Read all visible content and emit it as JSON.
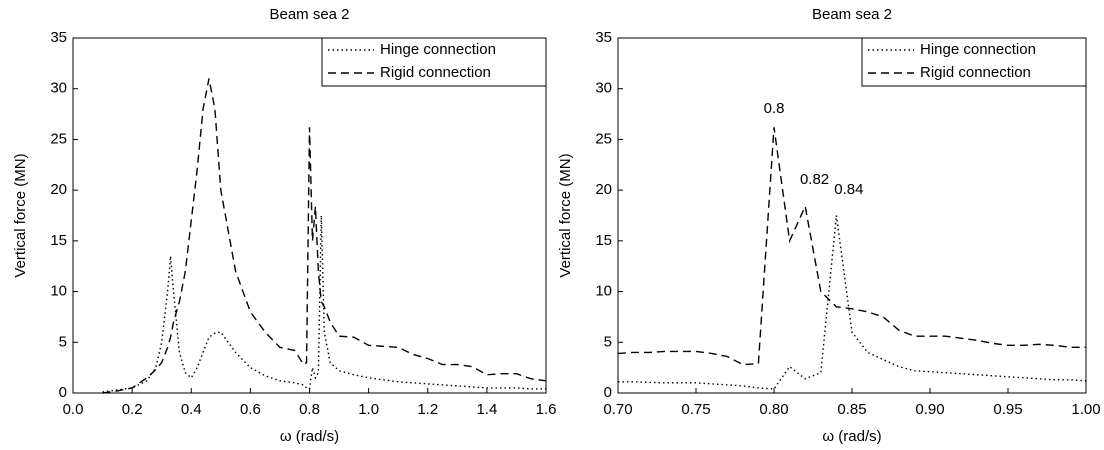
{
  "chart_data": [
    {
      "type": "line",
      "title": "Beam sea 2",
      "xlabel": "ω (rad/s)",
      "ylabel": "Vertical force (MN)",
      "xlim": [
        0,
        1.6
      ],
      "ylim": [
        0,
        35
      ],
      "xticks": [
        {
          "value": 0,
          "label": "0.0"
        },
        0.2,
        0.4,
        0.6,
        0.8,
        {
          "value": 1,
          "label": "1.0"
        },
        1.2,
        1.4,
        1.6
      ],
      "yticks": [
        0,
        5,
        10,
        15,
        20,
        25,
        30,
        35
      ],
      "legend": "upper right",
      "x": [
        0.1,
        0.15,
        0.2,
        0.25,
        0.28,
        0.3,
        0.32,
        0.33,
        0.34,
        0.36,
        0.38,
        0.4,
        0.42,
        0.44,
        0.46,
        0.48,
        0.5,
        0.55,
        0.6,
        0.65,
        0.7,
        0.75,
        0.78,
        0.79,
        0.8,
        0.81,
        0.82,
        0.83,
        0.84,
        0.85,
        0.87,
        0.9,
        0.95,
        1.0,
        1.05,
        1.1,
        1.15,
        1.2,
        1.25,
        1.3,
        1.35,
        1.4,
        1.45,
        1.5,
        1.55,
        1.6
      ],
      "series": [
        {
          "name": "Hinge connection",
          "color": "#000000",
          "dash": "dotted",
          "values": [
            0.1,
            0.3,
            0.5,
            1.2,
            2.5,
            5,
            10,
            13.5,
            10,
            4,
            2,
            1.5,
            2.5,
            4,
            5.5,
            5.9,
            6,
            4,
            2.5,
            1.7,
            1.2,
            1,
            0.8,
            0.5,
            0.4,
            2.5,
            1.5,
            2,
            17.5,
            6,
            3,
            2.2,
            1.8,
            1.5,
            1.3,
            1.1,
            1,
            0.9,
            0.8,
            0.7,
            0.6,
            0.5,
            0.5,
            0.5,
            0.4,
            0.4
          ]
        },
        {
          "name": "Rigid connection",
          "color": "#000000",
          "dash": "dashed",
          "values": [
            0,
            0.2,
            0.5,
            1.5,
            2.3,
            3,
            4.5,
            5.5,
            7,
            9,
            12,
            17,
            22,
            28,
            31,
            28,
            20,
            12,
            8,
            6,
            4.5,
            4.2,
            2.8,
            3,
            26.2,
            15,
            18.4,
            12,
            9,
            8.5,
            7,
            5.6,
            5.5,
            4.7,
            4.6,
            4.5,
            3.8,
            3.4,
            2.8,
            2.8,
            2.6,
            1.8,
            1.9,
            1.9,
            1.4,
            1.2
          ]
        }
      ]
    },
    {
      "type": "line",
      "title": "Beam sea 2",
      "xlabel": "ω (rad/s)",
      "ylabel": "Vertical force (MN)",
      "xlim": [
        0.7,
        1.0
      ],
      "ylim": [
        0,
        35
      ],
      "xticks": [
        {
          "value": 0.7,
          "label": "0.70"
        },
        0.75,
        {
          "value": 0.8,
          "label": "0.80"
        },
        0.85,
        {
          "value": 0.9,
          "label": "0.90"
        },
        0.95,
        {
          "value": 1,
          "label": "1.00"
        }
      ],
      "yticks": [
        0,
        5,
        10,
        15,
        20,
        25,
        30,
        35
      ],
      "legend": "upper right",
      "x": [
        0.7,
        0.71,
        0.72,
        0.73,
        0.74,
        0.75,
        0.76,
        0.77,
        0.78,
        0.79,
        0.8,
        0.81,
        0.82,
        0.83,
        0.84,
        0.85,
        0.86,
        0.87,
        0.88,
        0.89,
        0.9,
        0.91,
        0.92,
        0.93,
        0.94,
        0.95,
        0.96,
        0.97,
        0.98,
        0.99,
        1.0
      ],
      "series": [
        {
          "name": "Hinge connection",
          "color": "#000000",
          "dash": "dotted",
          "values": [
            1.1,
            1.1,
            1.05,
            1.0,
            1.0,
            1.0,
            0.9,
            0.8,
            0.7,
            0.5,
            0.4,
            2.6,
            1.4,
            2,
            17.5,
            6,
            4,
            3.3,
            2.6,
            2.2,
            2.1,
            2.0,
            1.9,
            1.8,
            1.7,
            1.6,
            1.5,
            1.4,
            1.3,
            1.3,
            1.2
          ]
        },
        {
          "name": "Rigid connection",
          "color": "#000000",
          "dash": "dashed",
          "values": [
            3.9,
            4.0,
            4.0,
            4.1,
            4.1,
            4.1,
            3.9,
            3.6,
            2.8,
            2.9,
            26.2,
            15,
            18.4,
            10,
            8.5,
            8.3,
            8,
            7.5,
            6.2,
            5.6,
            5.6,
            5.6,
            5.4,
            5.2,
            4.9,
            4.7,
            4.7,
            4.8,
            4.7,
            4.5,
            4.5
          ]
        }
      ],
      "annotations": [
        {
          "text": "0.8",
          "x": 0.8,
          "y": 28
        },
        {
          "text": "0.82",
          "x": 0.826,
          "y": 21
        },
        {
          "text": "0.84",
          "x": 0.848,
          "y": 20
        }
      ]
    }
  ]
}
